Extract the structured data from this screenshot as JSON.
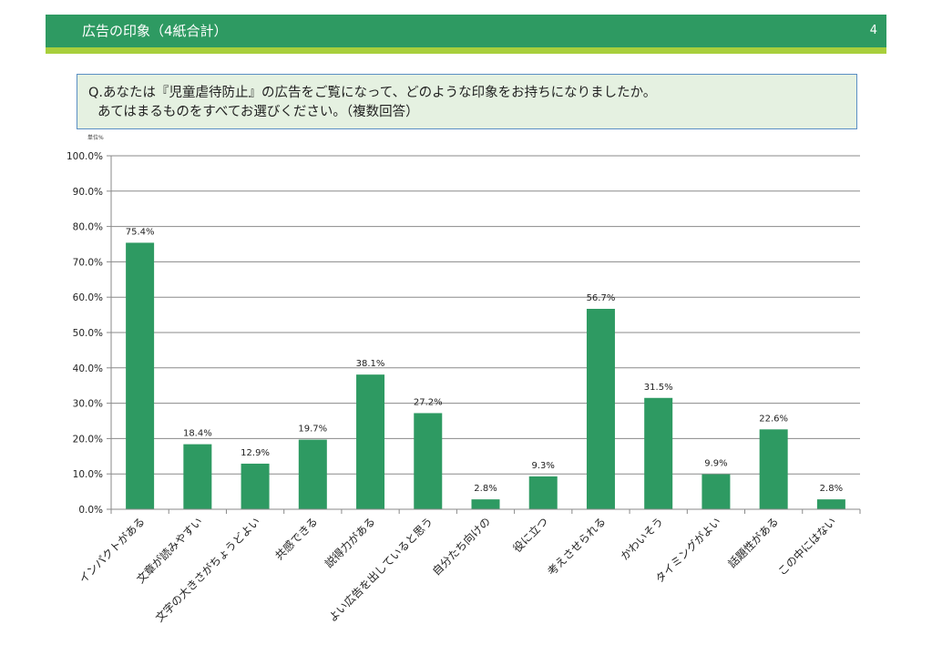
{
  "header": {
    "title": "広告の印象（4紙合計）",
    "page_number": "4"
  },
  "question": {
    "line1": "Q.あなたは『児童虐待防止』の広告をご覧になって、どのような印象をお持ちになりましたか。",
    "line2": "あてはまるものをすべてお選びください。（複数回答）"
  },
  "unit_label": "単位%",
  "colors": {
    "header": "#2e9a62",
    "accent_line": "#a8cf3c",
    "bar": "#2e9a62",
    "question_bg": "#e5f1e1"
  },
  "chart_data": {
    "type": "bar",
    "categories": [
      "インパクトがある",
      "文章が読みやすい",
      "文字の大きさがちょうどよい",
      "共感できる",
      "説得力がある",
      "よい広告を出していると思う",
      "自分たち向けの",
      "役に立つ",
      "考えさせられる",
      "かわいそう",
      "タイミングがよい",
      "話題性がある",
      "この中にはない"
    ],
    "values": [
      75.4,
      18.4,
      12.9,
      19.7,
      38.1,
      27.2,
      2.8,
      9.3,
      56.7,
      31.5,
      9.9,
      22.6,
      2.8
    ],
    "value_labels": [
      "75.4%",
      "18.4%",
      "12.9%",
      "19.7%",
      "38.1%",
      "27.2%",
      "2.8%",
      "9.3%",
      "56.7%",
      "31.5%",
      "9.9%",
      "22.6%",
      "2.8%"
    ],
    "y_ticks": [
      "0.0%",
      "10.0%",
      "20.0%",
      "30.0%",
      "40.0%",
      "50.0%",
      "60.0%",
      "70.0%",
      "80.0%",
      "90.0%",
      "100.0%"
    ],
    "ylim": [
      0,
      100
    ],
    "grid": true,
    "legend": "none"
  }
}
